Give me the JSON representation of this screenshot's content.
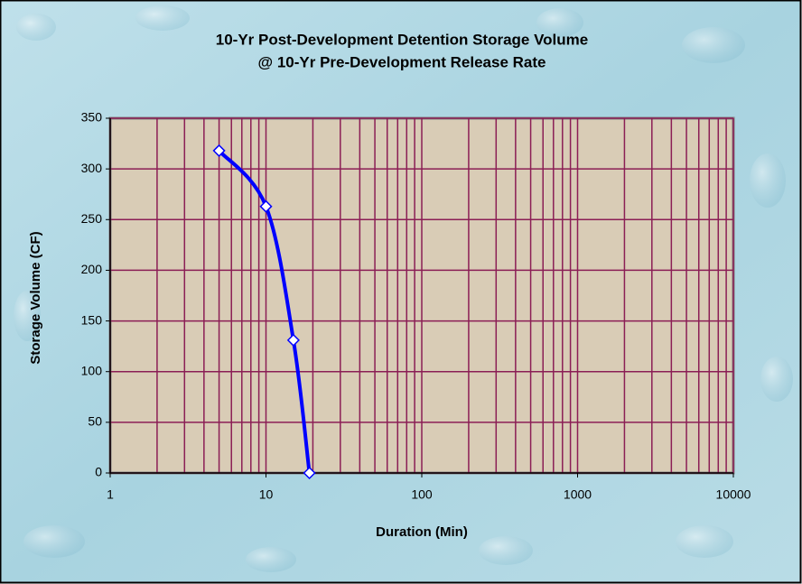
{
  "chart_data": {
    "type": "line",
    "title": "10-Yr Post-Development Detention Storage Volume",
    "subtitle": "@ 10-Yr Pre-Development Release Rate",
    "x_label": "Duration (Min)",
    "y_label": "Storage Volume (CF)",
    "x_scale": "log",
    "xlim": [
      1,
      10000
    ],
    "xticks": [
      1,
      10,
      100,
      1000,
      10000
    ],
    "ylim": [
      0,
      350
    ],
    "yticks": [
      0,
      50,
      100,
      150,
      200,
      250,
      300,
      350
    ],
    "grid": true,
    "minor_grid": true,
    "series": [
      {
        "color": "#0000ff",
        "marker": "diamond",
        "smooth": true,
        "x": [
          5,
          10,
          15,
          19
        ],
        "values": [
          318,
          263,
          131,
          0
        ]
      }
    ]
  }
}
